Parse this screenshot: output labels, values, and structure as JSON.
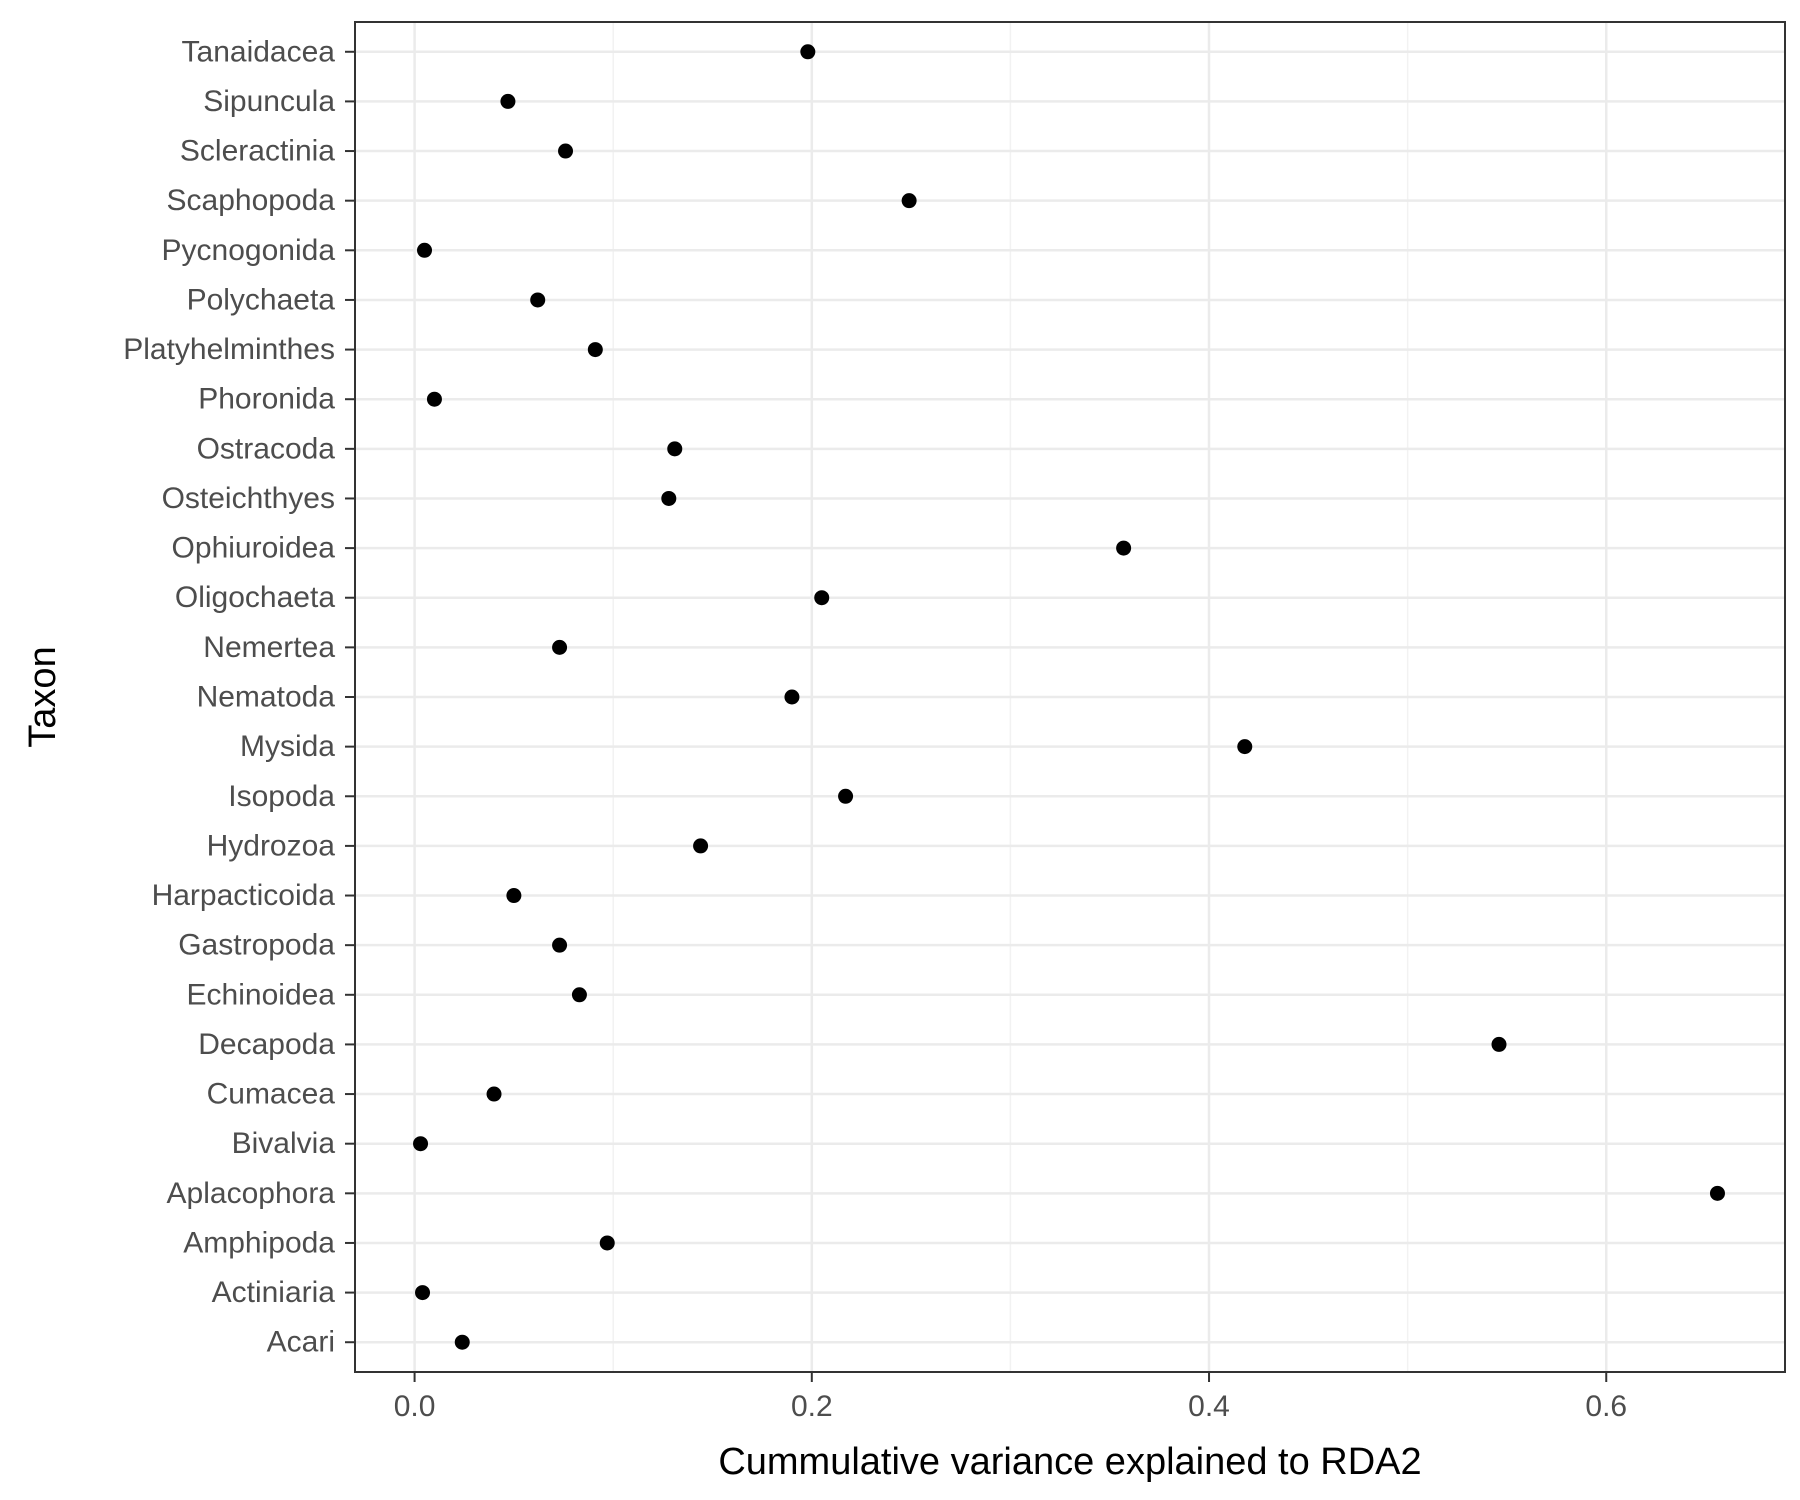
{
  "chart_data": {
    "type": "scatter",
    "title": "",
    "xlabel": "Cummulative variance explained to RDA2",
    "ylabel": "Taxon",
    "xlim": [
      -0.03,
      0.69
    ],
    "xticks": [
      0.0,
      0.2,
      0.4,
      0.6
    ],
    "xtick_labels": [
      "0.0",
      "0.2",
      "0.4",
      "0.6"
    ],
    "grid": true,
    "point_color": "#000000",
    "categories": [
      "Acari",
      "Actiniaria",
      "Amphipoda",
      "Aplacophora",
      "Bivalvia",
      "Cumacea",
      "Decapoda",
      "Echinoidea",
      "Gastropoda",
      "Harpacticoida",
      "Hydrozoa",
      "Isopoda",
      "Mysida",
      "Nematoda",
      "Nemertea",
      "Oligochaeta",
      "Ophiuroidea",
      "Osteichthyes",
      "Ostracoda",
      "Phoronida",
      "Platyhelminthes",
      "Polychaeta",
      "Pycnogonida",
      "Scaphopoda",
      "Scleractinia",
      "Sipuncula",
      "Tanaidacea"
    ],
    "values": [
      0.024,
      0.004,
      0.097,
      0.656,
      0.003,
      0.04,
      0.546,
      0.083,
      0.073,
      0.05,
      0.144,
      0.217,
      0.418,
      0.19,
      0.073,
      0.205,
      0.357,
      0.128,
      0.131,
      0.01,
      0.091,
      0.062,
      0.005,
      0.249,
      0.076,
      0.047,
      0.198
    ]
  }
}
